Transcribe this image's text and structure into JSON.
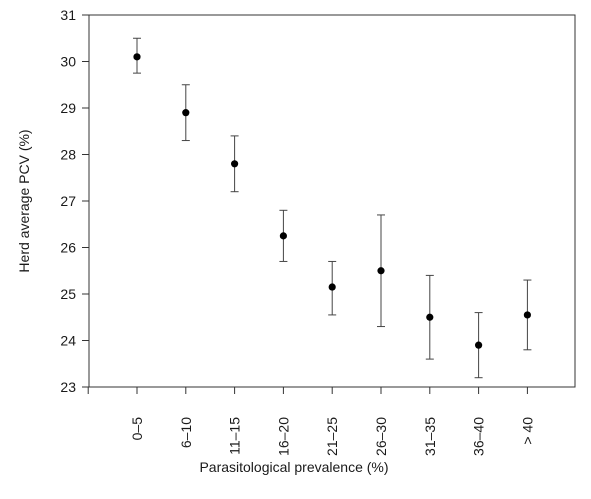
{
  "chart_data": {
    "type": "scatter",
    "title": "",
    "xlabel": "Parasitological prevalence (%)",
    "ylabel": "Herd average PCV (%)",
    "ylim": [
      23,
      31
    ],
    "yticks": [
      23,
      24,
      25,
      26,
      27,
      28,
      29,
      30,
      31
    ],
    "grid": false,
    "legend": "none",
    "categories": [
      "0–5",
      "6–10",
      "11–15",
      "16–20",
      "21–25",
      "26–30",
      "31–35",
      "36–40",
      "> 40"
    ],
    "series": [
      {
        "values": [
          30.1,
          28.9,
          27.8,
          26.25,
          25.15,
          25.5,
          24.5,
          23.9,
          24.55
        ],
        "error_low": [
          29.75,
          28.3,
          27.2,
          25.7,
          24.55,
          24.3,
          23.6,
          23.2,
          23.8
        ],
        "error_high": [
          30.5,
          29.5,
          28.4,
          26.8,
          25.7,
          26.7,
          25.4,
          24.6,
          25.3
        ]
      }
    ],
    "colors": {
      "marker": "#000000",
      "axis": "#333333",
      "error_bar": "#444444"
    }
  }
}
